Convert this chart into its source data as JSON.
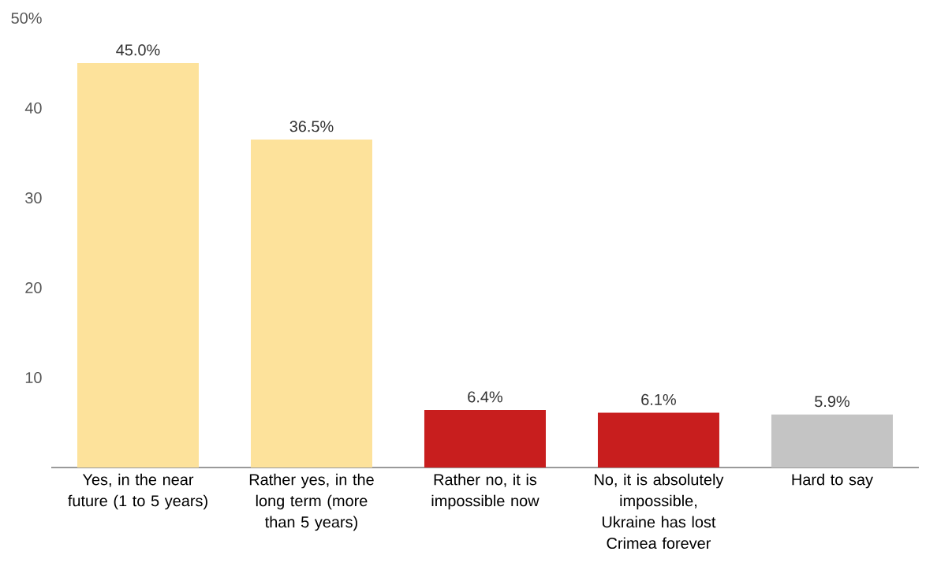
{
  "chart_data": {
    "type": "bar",
    "categories": [
      "Yes, in the near future (1 to 5 years)",
      "Rather yes, in the long term (more than 5 years)",
      "Rather no, it is impossible now",
      "No, it is absolutely impossible, Ukraine has lost Crimea forever",
      "Hard to say"
    ],
    "values": [
      45.0,
      36.5,
      6.4,
      6.1,
      5.9
    ],
    "colors": [
      "#fde29b",
      "#fde29b",
      "#c81e1e",
      "#c81e1e",
      "#c4c4c4"
    ],
    "value_labels": [
      "45.0%",
      "36.5%",
      "6.4%",
      "6.1%",
      "5.9%"
    ],
    "ylim": [
      0,
      50
    ],
    "yticks": [
      10,
      20,
      30,
      40,
      {
        "value": 50,
        "label": "50%"
      }
    ],
    "grid": false
  }
}
